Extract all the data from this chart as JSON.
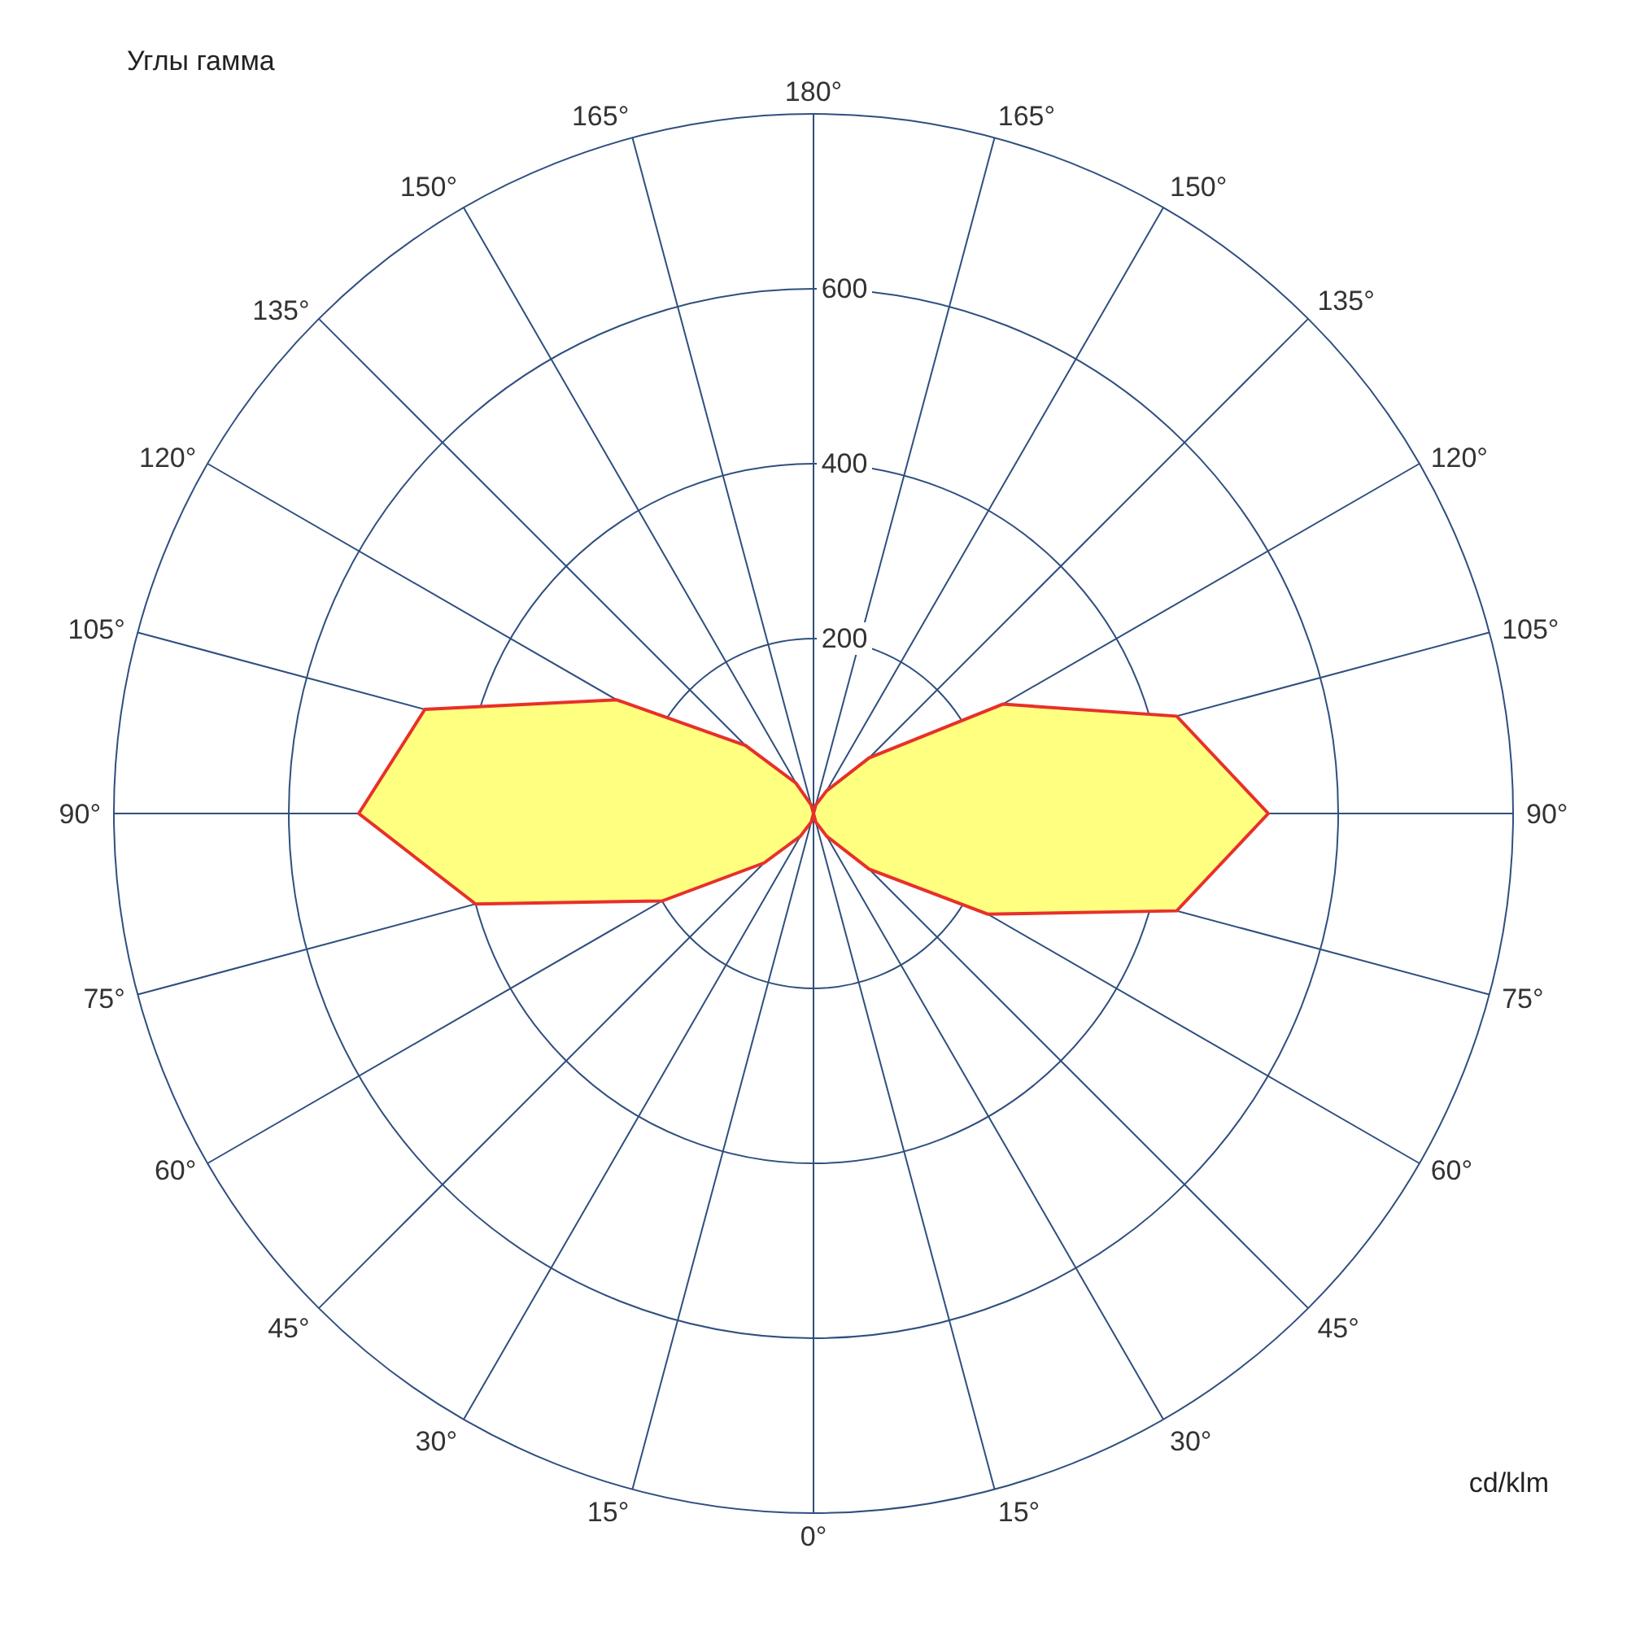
{
  "chart_data": {
    "type": "radar",
    "annotations": [
      "Углы гамма",
      "cd/klm"
    ],
    "categories": [
      "180°",
      "165°",
      "150°",
      "135°",
      "120°",
      "105°",
      "90°",
      "75°",
      "60°",
      "45°",
      "30°",
      "15°",
      "0°",
      "15°",
      "30°",
      "45°",
      "60°",
      "75°",
      "90°",
      "105°",
      "120°",
      "135°",
      "150°",
      "165°"
    ],
    "series": [
      {
        "color": "#ffff80",
        "values": [
          0,
          10,
          30,
          90,
          250,
          430,
          520,
          430,
          230,
          90,
          30,
          10,
          0,
          10,
          30,
          80,
          200,
          400,
          520,
          460,
          260,
          110,
          40,
          10
        ]
      }
    ],
    "ylim": [
      0,
      800
    ],
    "yticks": [
      200,
      400,
      600
    ],
    "grid": true,
    "legend": false
  }
}
